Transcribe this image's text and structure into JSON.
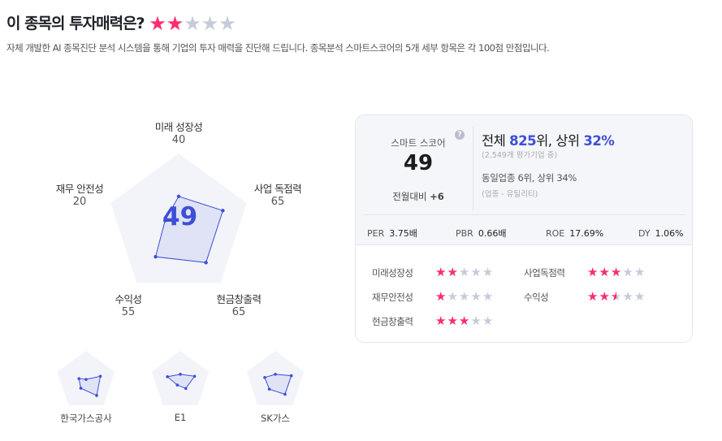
{
  "header": {
    "title": "이 종목의 투자매력은?",
    "rating": 2,
    "subtitle": "자체 개발한 AI 종목진단 분석 시스템을 통해 기업의 투자 매력을 진단해 드립니다. 종목분석 스마트스코어의 5개 세부 항목은 각 100점 만점입니다."
  },
  "radar": {
    "score": "49",
    "max": 100,
    "axes": [
      {
        "label": "미래 성장성",
        "value": 40
      },
      {
        "label": "사업 독점력",
        "value": 65
      },
      {
        "label": "현금창출력",
        "value": 65
      },
      {
        "label": "수익성",
        "value": 55
      },
      {
        "label": "재무 안전성",
        "value": 20
      }
    ]
  },
  "peers": [
    {
      "name": "한국가스공사",
      "values": [
        5,
        50,
        60,
        30,
        25
      ]
    },
    {
      "name": "E1",
      "values": [
        22,
        50,
        31,
        17,
        45
      ]
    },
    {
      "name": "SK가스",
      "values": [
        22,
        56,
        55,
        34,
        37
      ]
    }
  ],
  "card": {
    "score_label": "스마트 스코어",
    "score": "49",
    "change_label": "전월대비",
    "change": "+6",
    "help_icon": "question-circle-icon",
    "rank_prefix": "전체 ",
    "rank": "825",
    "rank_mid": "위, 상위 ",
    "rank_pct": "32%",
    "rank_note": "(2,549개 평가기업 중)",
    "industry_rank": "동일업종 6위, 상위 34%",
    "industry_note": "(업종 - 유틸리티)",
    "metrics": [
      {
        "key": "PER",
        "value": "3.75배"
      },
      {
        "key": "PBR",
        "value": "0.66배"
      },
      {
        "key": "ROE",
        "value": "17.69%"
      },
      {
        "key": "DY",
        "value": "1.06%"
      }
    ],
    "ratings": [
      {
        "label": "미래성장성",
        "stars": 2
      },
      {
        "label": "사업독점력",
        "stars": 3
      },
      {
        "label": "재무안전성",
        "stars": 1
      },
      {
        "label": "수익성",
        "stars": 2.5
      },
      {
        "label": "현금창출력",
        "stars": 3
      }
    ]
  },
  "colors": {
    "accent": "#3d4fd6",
    "star_on": "#ff2d6f",
    "star_off": "#c5cbd9",
    "pentagon": "#f3f4f9"
  }
}
